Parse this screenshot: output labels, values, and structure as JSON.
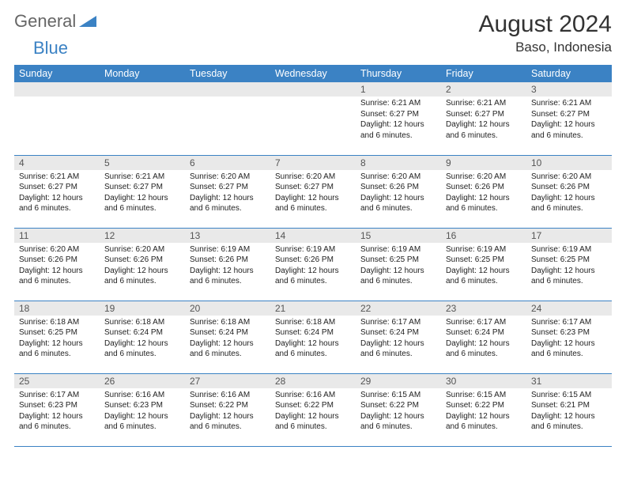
{
  "logo": {
    "text1": "General",
    "text2": "Blue"
  },
  "title": "August 2024",
  "location": "Baso, Indonesia",
  "colors": {
    "header_bg": "#3b82c4",
    "header_text": "#ffffff",
    "daynum_bg": "#e9e9e9",
    "text": "#222222",
    "border": "#3b82c4"
  },
  "typography": {
    "title_fontsize": 30,
    "location_fontsize": 17,
    "dayhead_fontsize": 12.5,
    "body_fontsize": 10
  },
  "days_of_week": [
    "Sunday",
    "Monday",
    "Tuesday",
    "Wednesday",
    "Thursday",
    "Friday",
    "Saturday"
  ],
  "weeks": [
    [
      null,
      null,
      null,
      null,
      {
        "n": "1",
        "sunrise": "Sunrise: 6:21 AM",
        "sunset": "Sunset: 6:27 PM",
        "day1": "Daylight: 12 hours",
        "day2": "and 6 minutes."
      },
      {
        "n": "2",
        "sunrise": "Sunrise: 6:21 AM",
        "sunset": "Sunset: 6:27 PM",
        "day1": "Daylight: 12 hours",
        "day2": "and 6 minutes."
      },
      {
        "n": "3",
        "sunrise": "Sunrise: 6:21 AM",
        "sunset": "Sunset: 6:27 PM",
        "day1": "Daylight: 12 hours",
        "day2": "and 6 minutes."
      }
    ],
    [
      {
        "n": "4",
        "sunrise": "Sunrise: 6:21 AM",
        "sunset": "Sunset: 6:27 PM",
        "day1": "Daylight: 12 hours",
        "day2": "and 6 minutes."
      },
      {
        "n": "5",
        "sunrise": "Sunrise: 6:21 AM",
        "sunset": "Sunset: 6:27 PM",
        "day1": "Daylight: 12 hours",
        "day2": "and 6 minutes."
      },
      {
        "n": "6",
        "sunrise": "Sunrise: 6:20 AM",
        "sunset": "Sunset: 6:27 PM",
        "day1": "Daylight: 12 hours",
        "day2": "and 6 minutes."
      },
      {
        "n": "7",
        "sunrise": "Sunrise: 6:20 AM",
        "sunset": "Sunset: 6:27 PM",
        "day1": "Daylight: 12 hours",
        "day2": "and 6 minutes."
      },
      {
        "n": "8",
        "sunrise": "Sunrise: 6:20 AM",
        "sunset": "Sunset: 6:26 PM",
        "day1": "Daylight: 12 hours",
        "day2": "and 6 minutes."
      },
      {
        "n": "9",
        "sunrise": "Sunrise: 6:20 AM",
        "sunset": "Sunset: 6:26 PM",
        "day1": "Daylight: 12 hours",
        "day2": "and 6 minutes."
      },
      {
        "n": "10",
        "sunrise": "Sunrise: 6:20 AM",
        "sunset": "Sunset: 6:26 PM",
        "day1": "Daylight: 12 hours",
        "day2": "and 6 minutes."
      }
    ],
    [
      {
        "n": "11",
        "sunrise": "Sunrise: 6:20 AM",
        "sunset": "Sunset: 6:26 PM",
        "day1": "Daylight: 12 hours",
        "day2": "and 6 minutes."
      },
      {
        "n": "12",
        "sunrise": "Sunrise: 6:20 AM",
        "sunset": "Sunset: 6:26 PM",
        "day1": "Daylight: 12 hours",
        "day2": "and 6 minutes."
      },
      {
        "n": "13",
        "sunrise": "Sunrise: 6:19 AM",
        "sunset": "Sunset: 6:26 PM",
        "day1": "Daylight: 12 hours",
        "day2": "and 6 minutes."
      },
      {
        "n": "14",
        "sunrise": "Sunrise: 6:19 AM",
        "sunset": "Sunset: 6:26 PM",
        "day1": "Daylight: 12 hours",
        "day2": "and 6 minutes."
      },
      {
        "n": "15",
        "sunrise": "Sunrise: 6:19 AM",
        "sunset": "Sunset: 6:25 PM",
        "day1": "Daylight: 12 hours",
        "day2": "and 6 minutes."
      },
      {
        "n": "16",
        "sunrise": "Sunrise: 6:19 AM",
        "sunset": "Sunset: 6:25 PM",
        "day1": "Daylight: 12 hours",
        "day2": "and 6 minutes."
      },
      {
        "n": "17",
        "sunrise": "Sunrise: 6:19 AM",
        "sunset": "Sunset: 6:25 PM",
        "day1": "Daylight: 12 hours",
        "day2": "and 6 minutes."
      }
    ],
    [
      {
        "n": "18",
        "sunrise": "Sunrise: 6:18 AM",
        "sunset": "Sunset: 6:25 PM",
        "day1": "Daylight: 12 hours",
        "day2": "and 6 minutes."
      },
      {
        "n": "19",
        "sunrise": "Sunrise: 6:18 AM",
        "sunset": "Sunset: 6:24 PM",
        "day1": "Daylight: 12 hours",
        "day2": "and 6 minutes."
      },
      {
        "n": "20",
        "sunrise": "Sunrise: 6:18 AM",
        "sunset": "Sunset: 6:24 PM",
        "day1": "Daylight: 12 hours",
        "day2": "and 6 minutes."
      },
      {
        "n": "21",
        "sunrise": "Sunrise: 6:18 AM",
        "sunset": "Sunset: 6:24 PM",
        "day1": "Daylight: 12 hours",
        "day2": "and 6 minutes."
      },
      {
        "n": "22",
        "sunrise": "Sunrise: 6:17 AM",
        "sunset": "Sunset: 6:24 PM",
        "day1": "Daylight: 12 hours",
        "day2": "and 6 minutes."
      },
      {
        "n": "23",
        "sunrise": "Sunrise: 6:17 AM",
        "sunset": "Sunset: 6:24 PM",
        "day1": "Daylight: 12 hours",
        "day2": "and 6 minutes."
      },
      {
        "n": "24",
        "sunrise": "Sunrise: 6:17 AM",
        "sunset": "Sunset: 6:23 PM",
        "day1": "Daylight: 12 hours",
        "day2": "and 6 minutes."
      }
    ],
    [
      {
        "n": "25",
        "sunrise": "Sunrise: 6:17 AM",
        "sunset": "Sunset: 6:23 PM",
        "day1": "Daylight: 12 hours",
        "day2": "and 6 minutes."
      },
      {
        "n": "26",
        "sunrise": "Sunrise: 6:16 AM",
        "sunset": "Sunset: 6:23 PM",
        "day1": "Daylight: 12 hours",
        "day2": "and 6 minutes."
      },
      {
        "n": "27",
        "sunrise": "Sunrise: 6:16 AM",
        "sunset": "Sunset: 6:22 PM",
        "day1": "Daylight: 12 hours",
        "day2": "and 6 minutes."
      },
      {
        "n": "28",
        "sunrise": "Sunrise: 6:16 AM",
        "sunset": "Sunset: 6:22 PM",
        "day1": "Daylight: 12 hours",
        "day2": "and 6 minutes."
      },
      {
        "n": "29",
        "sunrise": "Sunrise: 6:15 AM",
        "sunset": "Sunset: 6:22 PM",
        "day1": "Daylight: 12 hours",
        "day2": "and 6 minutes."
      },
      {
        "n": "30",
        "sunrise": "Sunrise: 6:15 AM",
        "sunset": "Sunset: 6:22 PM",
        "day1": "Daylight: 12 hours",
        "day2": "and 6 minutes."
      },
      {
        "n": "31",
        "sunrise": "Sunrise: 6:15 AM",
        "sunset": "Sunset: 6:21 PM",
        "day1": "Daylight: 12 hours",
        "day2": "and 6 minutes."
      }
    ]
  ]
}
